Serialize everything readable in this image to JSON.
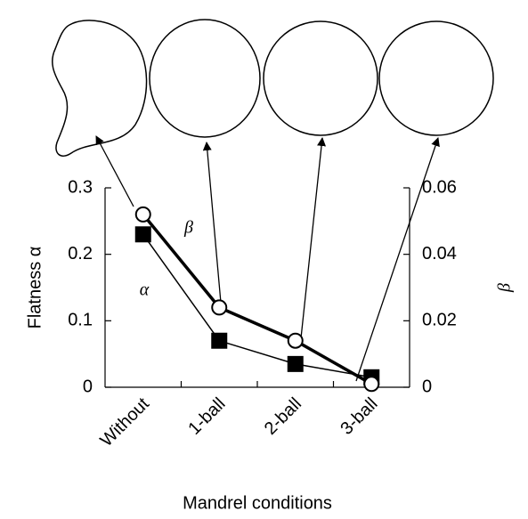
{
  "chart_data": {
    "type": "line",
    "categories": [
      "Without",
      "1-ball",
      "2-ball",
      "3-ball"
    ],
    "series": [
      {
        "name": "α",
        "color": "#000000",
        "marker": "square",
        "values": [
          0.23,
          0.07,
          0.035,
          0.015
        ]
      },
      {
        "name": "β",
        "color": "#000000",
        "marker": "circle",
        "axis": "y2",
        "values": [
          0.052,
          0.024,
          0.014,
          0.001
        ]
      }
    ],
    "ylim": [
      0,
      0.3
    ],
    "yticks": [
      0,
      0.1,
      0.2,
      0.3
    ],
    "y2lim": [
      0,
      0.06
    ],
    "y2ticks": [
      0,
      0.02,
      0.04,
      0.06
    ],
    "ylabel": "Flatness α",
    "y2label": "β",
    "xlabel": "Mandrel conditions"
  }
}
